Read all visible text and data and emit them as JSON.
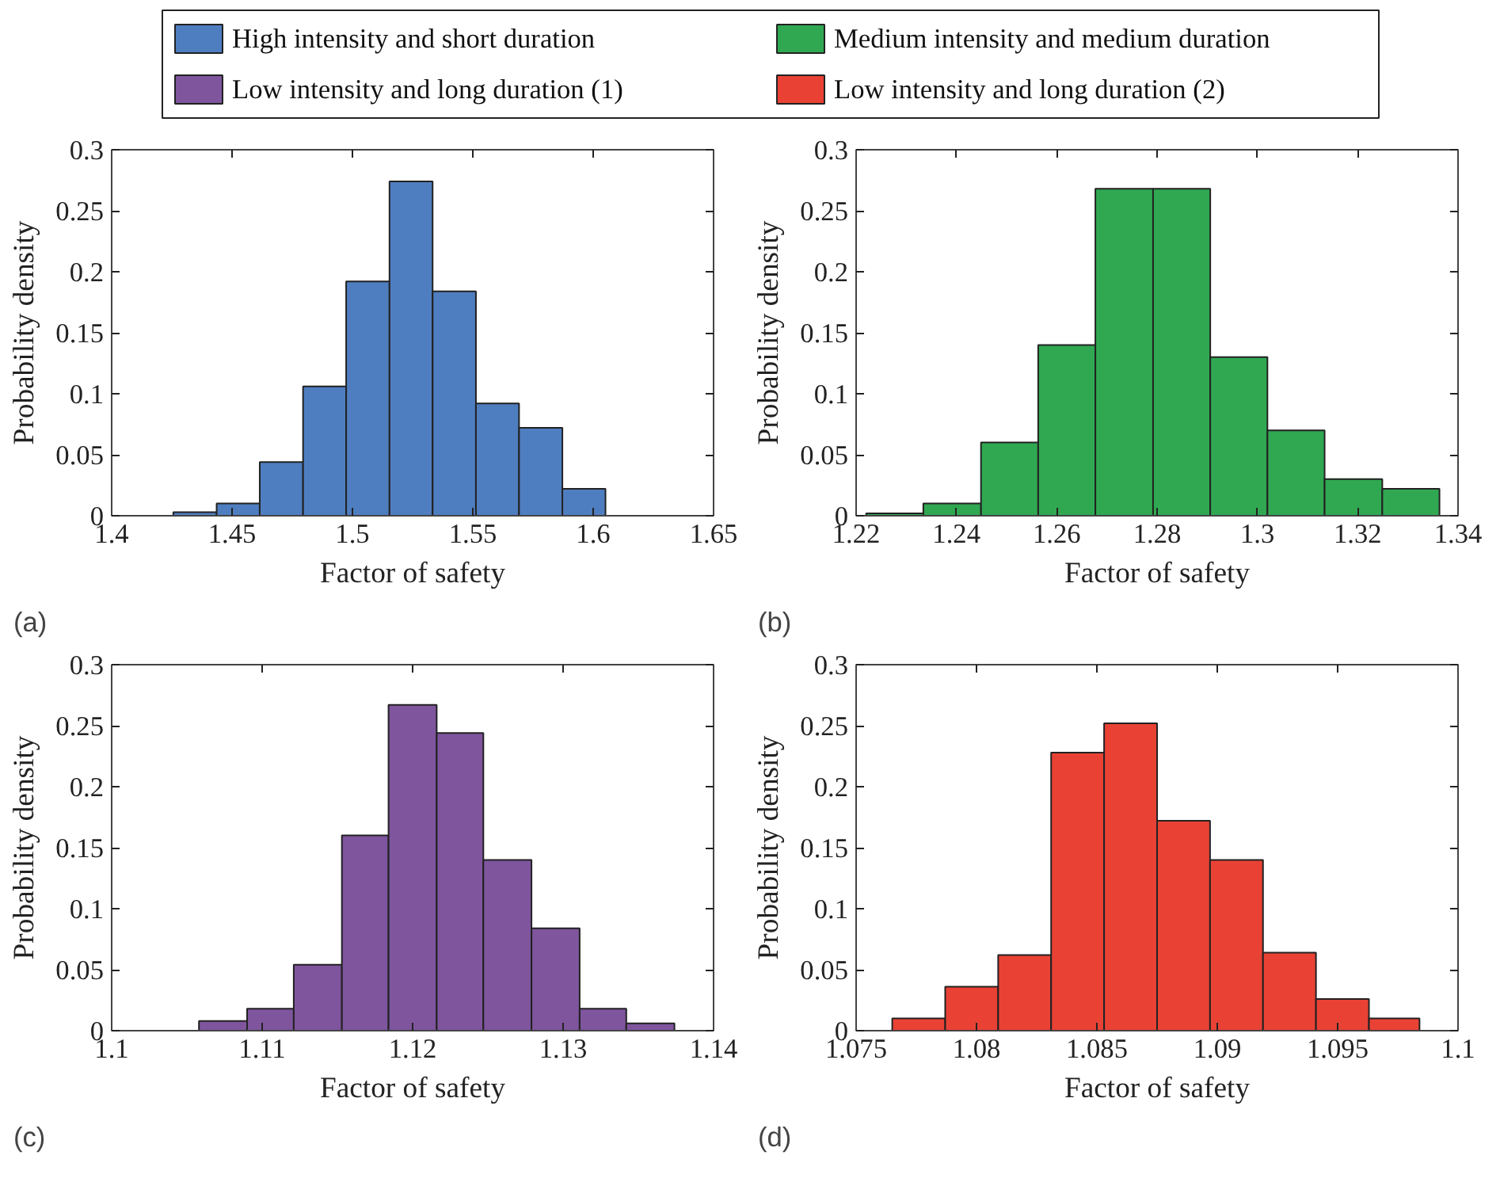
{
  "chart_data": [
    {
      "type": "histogram",
      "xlabel": "Factor of safety",
      "ylabel": "Probability density",
      "annotations": [
        "(a)"
      ],
      "legend": "top",
      "bins": [
        1.4256,
        1.4436,
        1.4615,
        1.4795,
        1.4974,
        1.5154,
        1.5333,
        1.5513,
        1.5692,
        1.5872,
        1.6051
      ],
      "series": [
        {
          "name": "High intensity and short duration",
          "color": "#4f7ec0",
          "values": [
            0.003,
            0.01,
            0.044,
            0.106,
            0.192,
            0.274,
            0.184,
            0.092,
            0.072,
            0.022
          ]
        }
      ],
      "xlim": [
        1.4,
        1.65
      ],
      "xticks": [
        1.4,
        1.45,
        1.5,
        1.55,
        1.6,
        1.65
      ],
      "ylim": [
        0,
        0.3
      ],
      "yticks": [
        0,
        0.05,
        0.1,
        0.15,
        0.2,
        0.25,
        0.3
      ]
    },
    {
      "type": "histogram",
      "xlabel": "Factor of safety",
      "ylabel": "Probability density",
      "annotations": [
        "(b)"
      ],
      "legend": "top",
      "bins": [
        1.222,
        1.2334,
        1.2449,
        1.2563,
        1.2677,
        1.2792,
        1.2906,
        1.302,
        1.3134,
        1.3249,
        1.3363
      ],
      "series": [
        {
          "name": "Medium intensity and medium duration",
          "color": "#30a852",
          "values": [
            0.002,
            0.01,
            0.06,
            0.14,
            0.268,
            0.268,
            0.13,
            0.07,
            0.03,
            0.022
          ]
        }
      ],
      "xlim": [
        1.22,
        1.34
      ],
      "xticks": [
        1.22,
        1.24,
        1.26,
        1.28,
        1.3,
        1.32,
        1.34
      ],
      "ylim": [
        0,
        0.3
      ],
      "yticks": [
        0,
        0.05,
        0.1,
        0.15,
        0.2,
        0.25,
        0.3
      ]
    },
    {
      "type": "histogram",
      "xlabel": "Factor of safety",
      "ylabel": "Probability density",
      "annotations": [
        "(c)"
      ],
      "legend": "top",
      "bins": [
        1.1058,
        1.109,
        1.1121,
        1.1153,
        1.1184,
        1.1216,
        1.1247,
        1.1279,
        1.1311,
        1.1342,
        1.1374
      ],
      "series": [
        {
          "name": "Low intensity and long duration (1)",
          "color": "#7f559e",
          "values": [
            0.008,
            0.018,
            0.054,
            0.16,
            0.267,
            0.244,
            0.14,
            0.084,
            0.018,
            0.006
          ]
        }
      ],
      "xlim": [
        1.1,
        1.14
      ],
      "xticks": [
        1.1,
        1.11,
        1.12,
        1.13,
        1.14
      ],
      "ylim": [
        0,
        0.3
      ],
      "yticks": [
        0,
        0.05,
        0.1,
        0.15,
        0.2,
        0.25,
        0.3
      ]
    },
    {
      "type": "histogram",
      "xlabel": "Factor of safety",
      "ylabel": "Probability density",
      "annotations": [
        "(d)"
      ],
      "legend": "top",
      "bins": [
        1.0765,
        1.0787,
        1.0809,
        1.0831,
        1.0853,
        1.0875,
        1.0897,
        1.0919,
        1.0941,
        1.0963,
        1.0984
      ],
      "series": [
        {
          "name": "Low intensity and long duration (2)",
          "color": "#e94235",
          "values": [
            0.01,
            0.036,
            0.062,
            0.228,
            0.252,
            0.172,
            0.14,
            0.064,
            0.026,
            0.01
          ]
        }
      ],
      "xlim": [
        1.075,
        1.1
      ],
      "xticks": [
        1.075,
        1.08,
        1.085,
        1.09,
        1.095,
        1.1
      ],
      "ylim": [
        0,
        0.3
      ],
      "yticks": [
        0,
        0.05,
        0.1,
        0.15,
        0.2,
        0.25,
        0.3
      ]
    }
  ]
}
